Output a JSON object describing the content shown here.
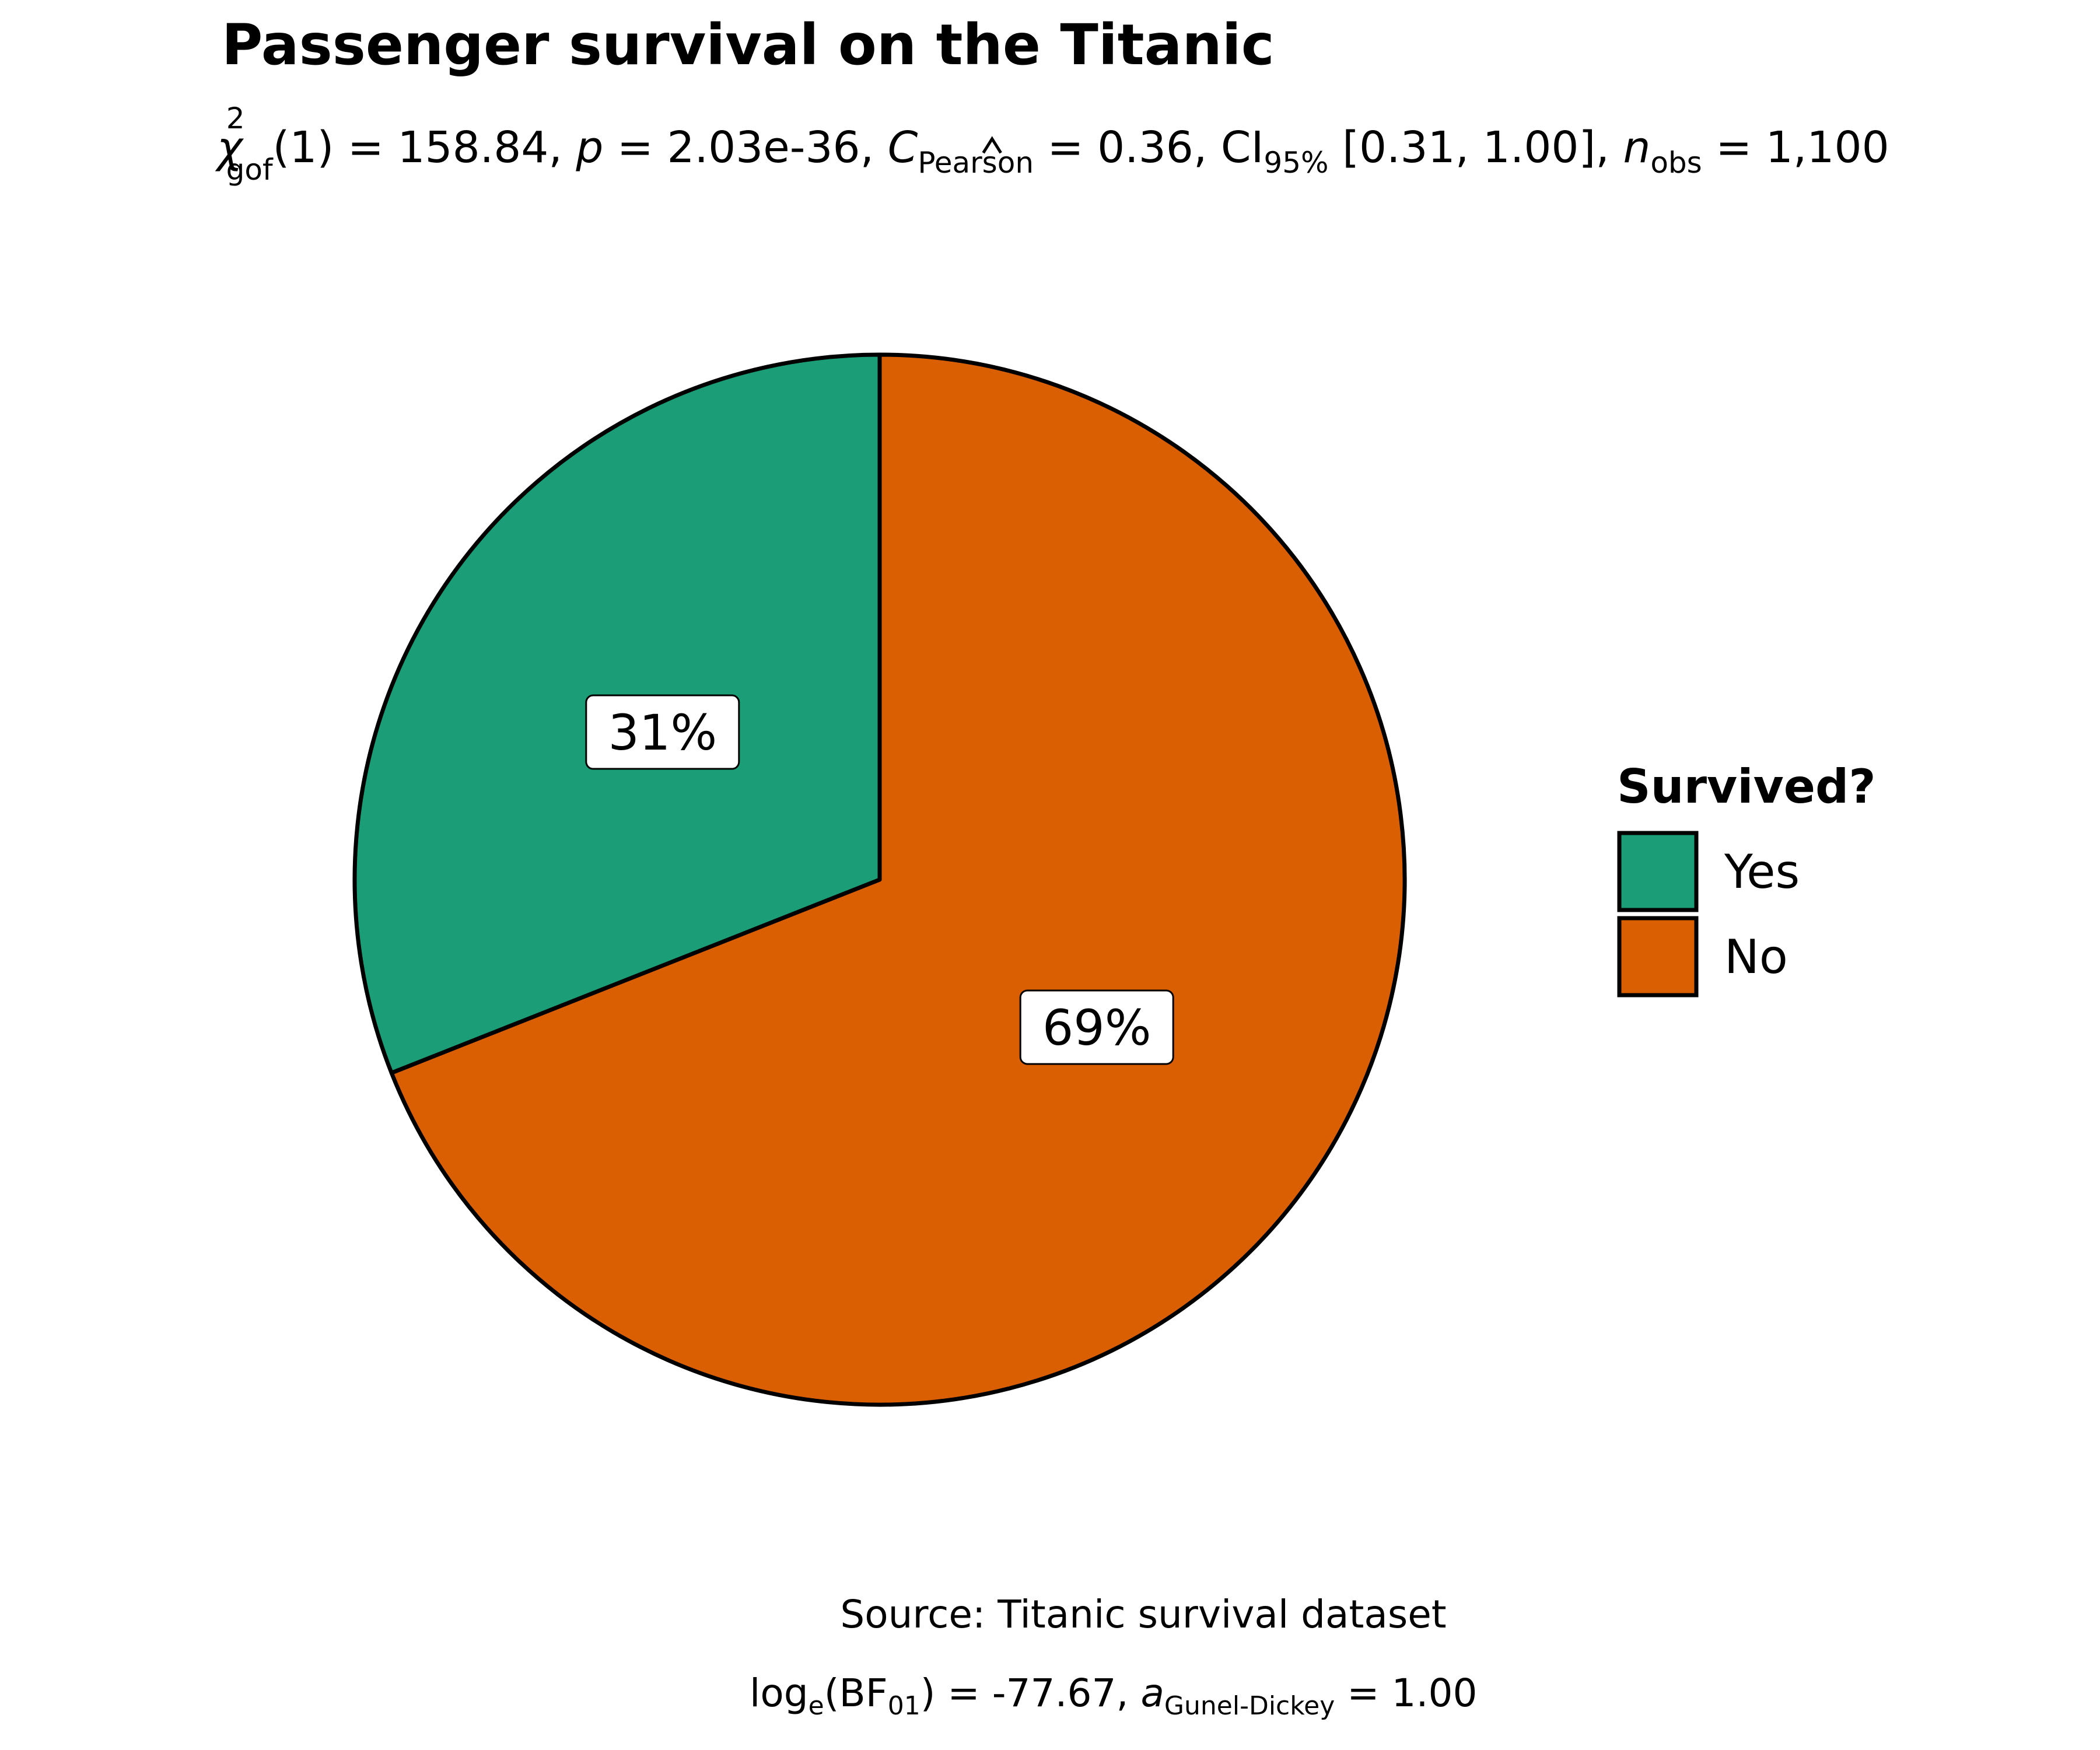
{
  "chart_data": {
    "type": "pie",
    "title": "Passenger survival on the Titanic",
    "subtitle": {
      "chi_symbol": "χ",
      "chi_sup": "2",
      "chi_sub": "gof",
      "df": "(1)",
      "eq1": " = ",
      "stat_value": "158.84",
      "sep1": ", ",
      "p_symbol": "p",
      "eq2": " = ",
      "p_value": "2.03e-36",
      "sep2": ", ",
      "c_symbol": "C",
      "c_sub": "Pearson",
      "eq3": " = ",
      "c_value": "0.36",
      "sep3": ", CI",
      "ci_sub": "95%",
      "ci_value": " [0.31, 1.00]",
      "sep4": ", ",
      "n_symbol": "n",
      "n_sub": "obs",
      "eq4": " = ",
      "n_value": "1,100"
    },
    "caption": {
      "source": "Source: Titanic survival dataset",
      "log_prefix": "log",
      "log_sub": "e",
      "bf_open": "(BF",
      "bf_sub": "01",
      "bf_close": ")",
      "eq1": " = ",
      "bf_value": "-77.67",
      "sep1": ", ",
      "a_symbol": "a",
      "a_sub": "Gunel-Dickey",
      "eq2": " = ",
      "a_value": "1.00"
    },
    "legend": {
      "title": "Survived?",
      "placement": "right"
    },
    "slices": [
      {
        "label": "Yes",
        "value": 31,
        "display": "31%",
        "color": "#1B9E77"
      },
      {
        "label": "No",
        "value": 69,
        "display": "69%",
        "color": "#D95F02"
      }
    ],
    "start": "12 o'clock",
    "direction": "counterclockwise"
  }
}
